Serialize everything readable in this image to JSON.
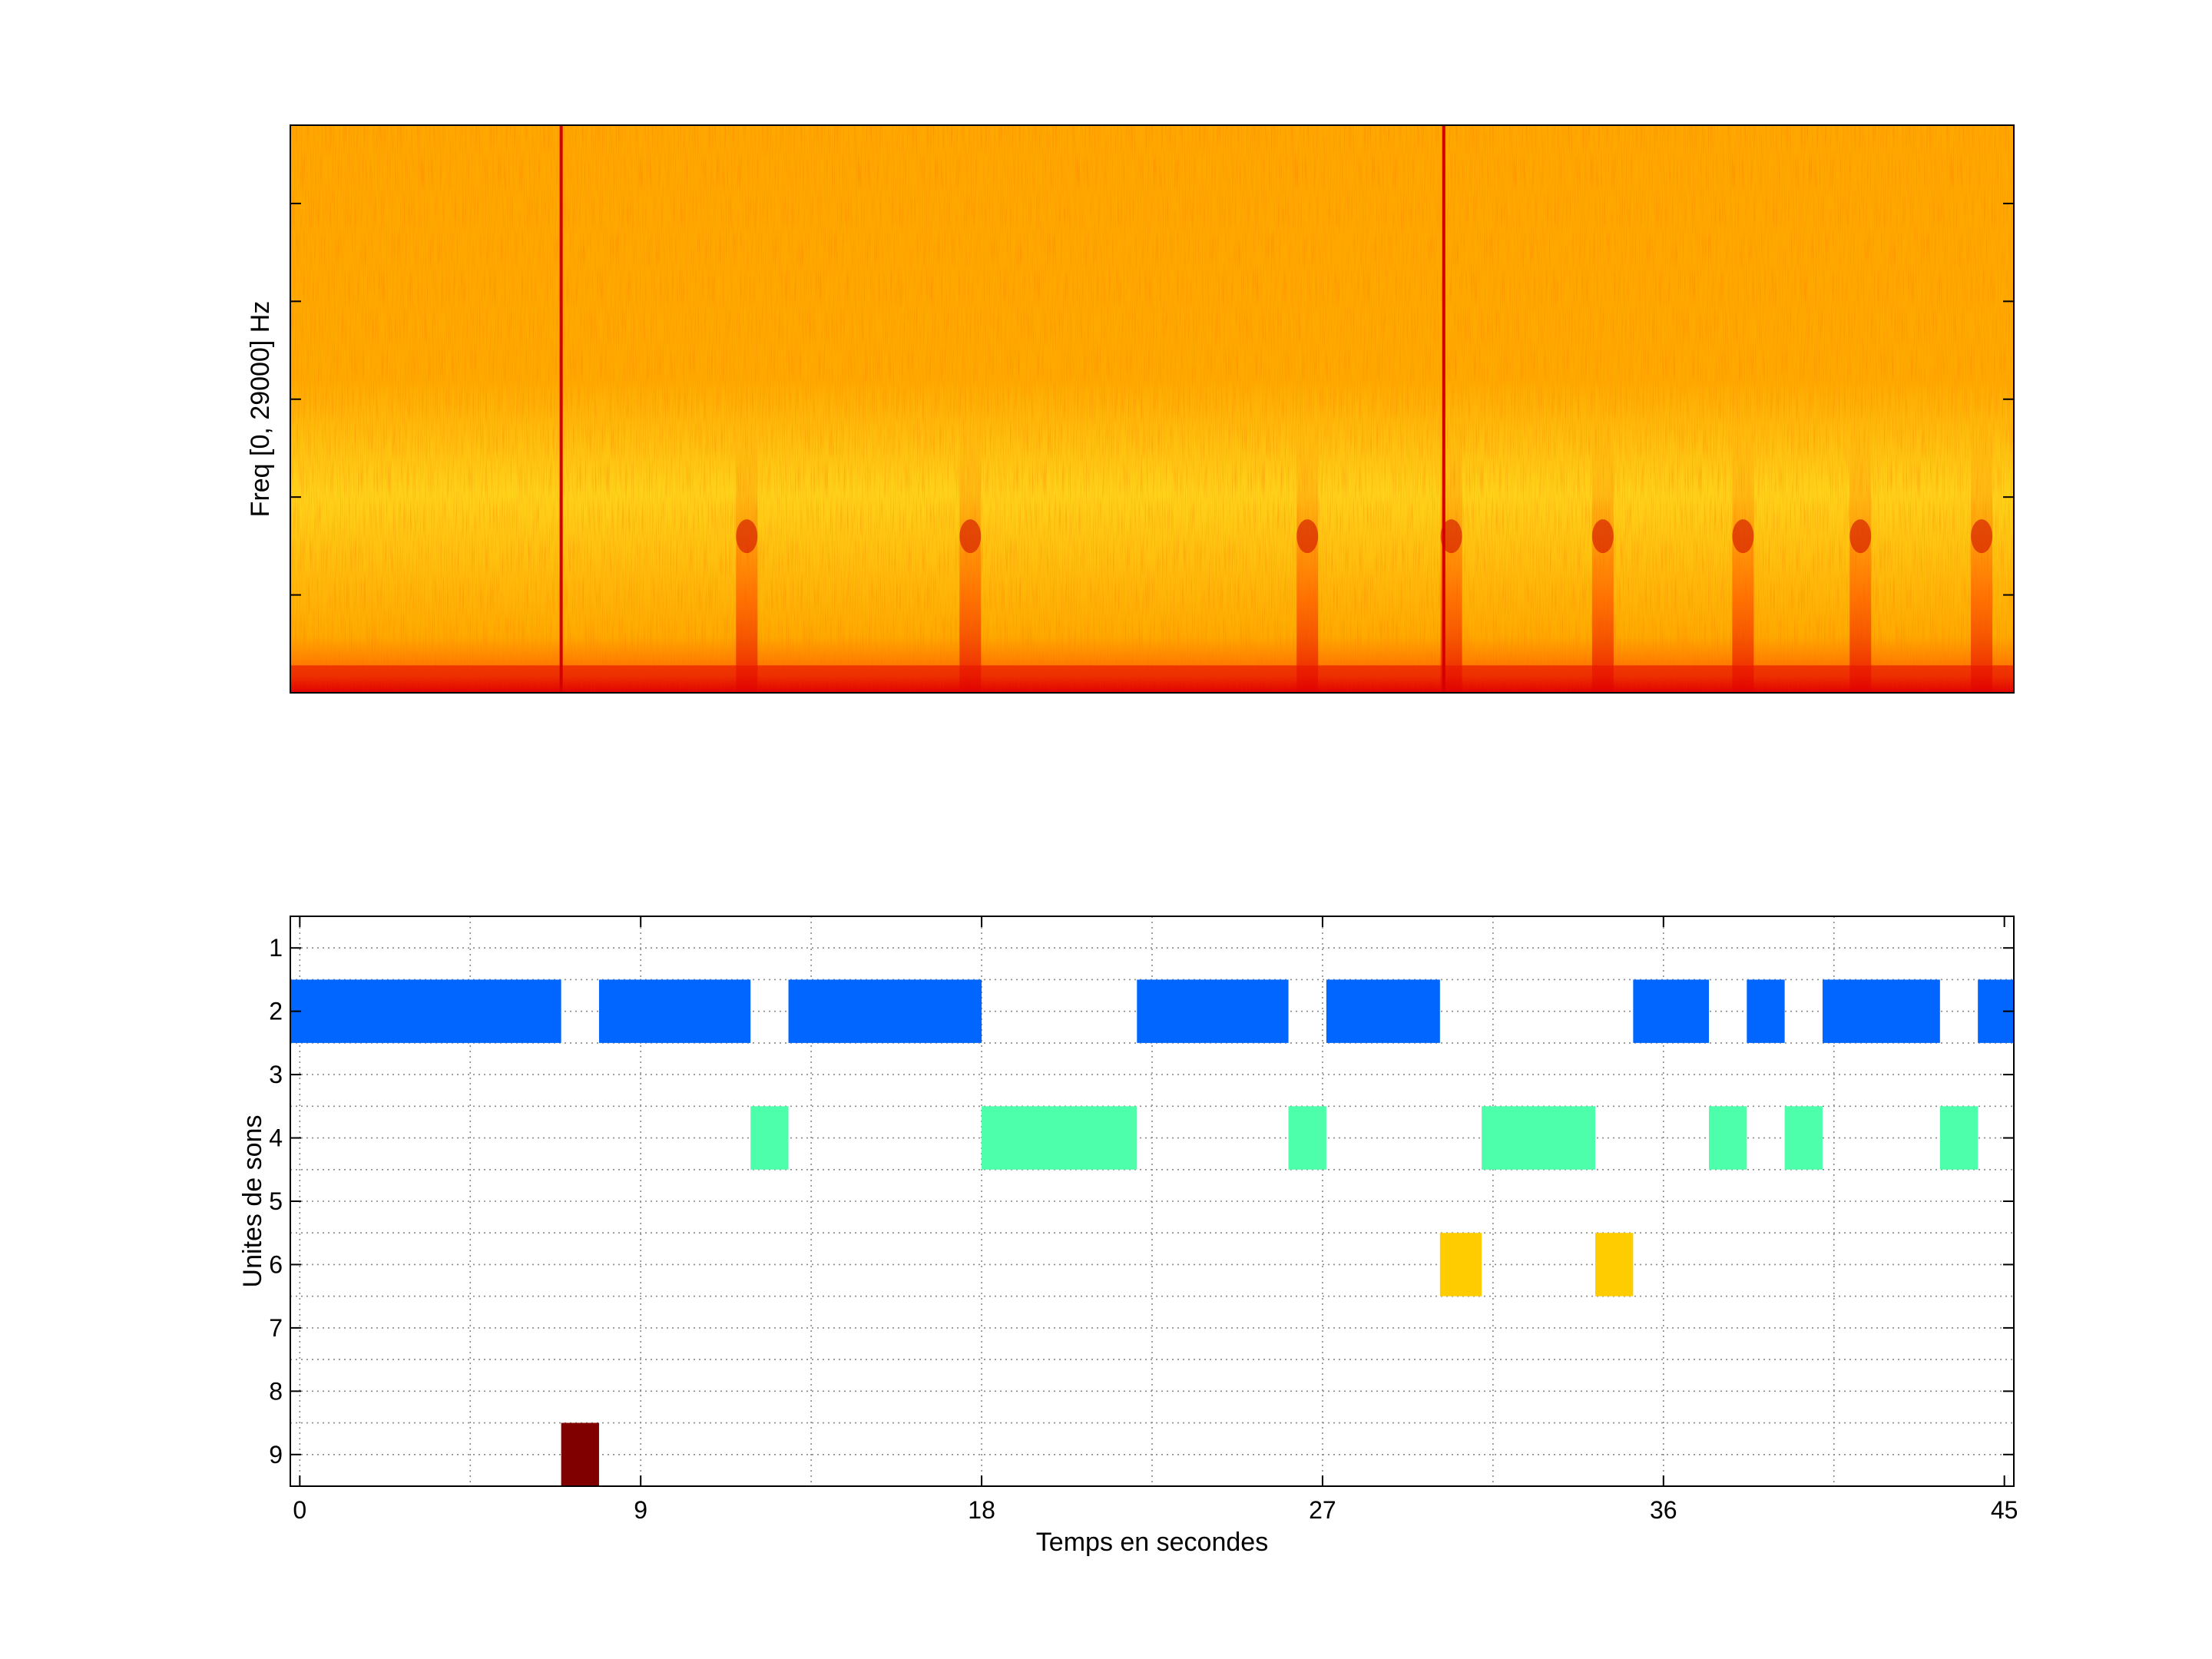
{
  "chart_data": [
    {
      "type": "heatmap",
      "title": "",
      "xlabel": "",
      "ylabel": "Freq [0, 29000] Hz",
      "ylim": [
        0,
        29000
      ],
      "xlim": [
        -0.25,
        45.25
      ],
      "grid": false,
      "colormap": "hot",
      "colors": {
        "low": "#ffee33",
        "mid": "#ffaa00",
        "high": "#e00000"
      },
      "strong_vertical_lines_s": [
        6.9,
        30.2
      ],
      "energy_bursts_s": [
        11.8,
        17.7,
        26.6,
        30.4,
        34.4,
        38.1,
        41.2,
        44.4
      ],
      "low_frequency_band_hz": [
        0,
        1400
      ]
    },
    {
      "type": "timeline",
      "title": "",
      "xlabel": "Temps en secondes",
      "ylabel": "Unites de sons",
      "xlim": [
        -0.25,
        45.25
      ],
      "ylim": [
        0.5,
        9.5
      ],
      "y_reversed": true,
      "grid": true,
      "x_ticks": [
        0,
        9,
        18,
        27,
        36,
        45
      ],
      "y_ticks": [
        1,
        2,
        3,
        4,
        5,
        6,
        7,
        8,
        9
      ],
      "series": [
        {
          "unit": 2,
          "color": "#0066ff",
          "segments": [
            [
              -0.25,
              6.9
            ],
            [
              7.9,
              11.9
            ],
            [
              12.9,
              18.0
            ],
            [
              22.1,
              26.1
            ],
            [
              27.1,
              30.1
            ],
            [
              35.2,
              37.2
            ],
            [
              38.2,
              39.2
            ],
            [
              40.2,
              43.3
            ],
            [
              44.3,
              45.25
            ]
          ]
        },
        {
          "unit": 4,
          "color": "#4dffaa",
          "segments": [
            [
              11.9,
              12.9
            ],
            [
              18.0,
              22.1
            ],
            [
              26.1,
              27.1
            ],
            [
              31.2,
              34.2
            ],
            [
              37.2,
              38.2
            ],
            [
              39.2,
              40.2
            ],
            [
              43.3,
              44.3
            ]
          ]
        },
        {
          "unit": 6,
          "color": "#ffcc00",
          "segments": [
            [
              30.1,
              31.2
            ],
            [
              34.2,
              35.2
            ]
          ]
        },
        {
          "unit": 9,
          "color": "#800000",
          "segments": [
            [
              6.9,
              7.9
            ]
          ]
        }
      ]
    }
  ]
}
